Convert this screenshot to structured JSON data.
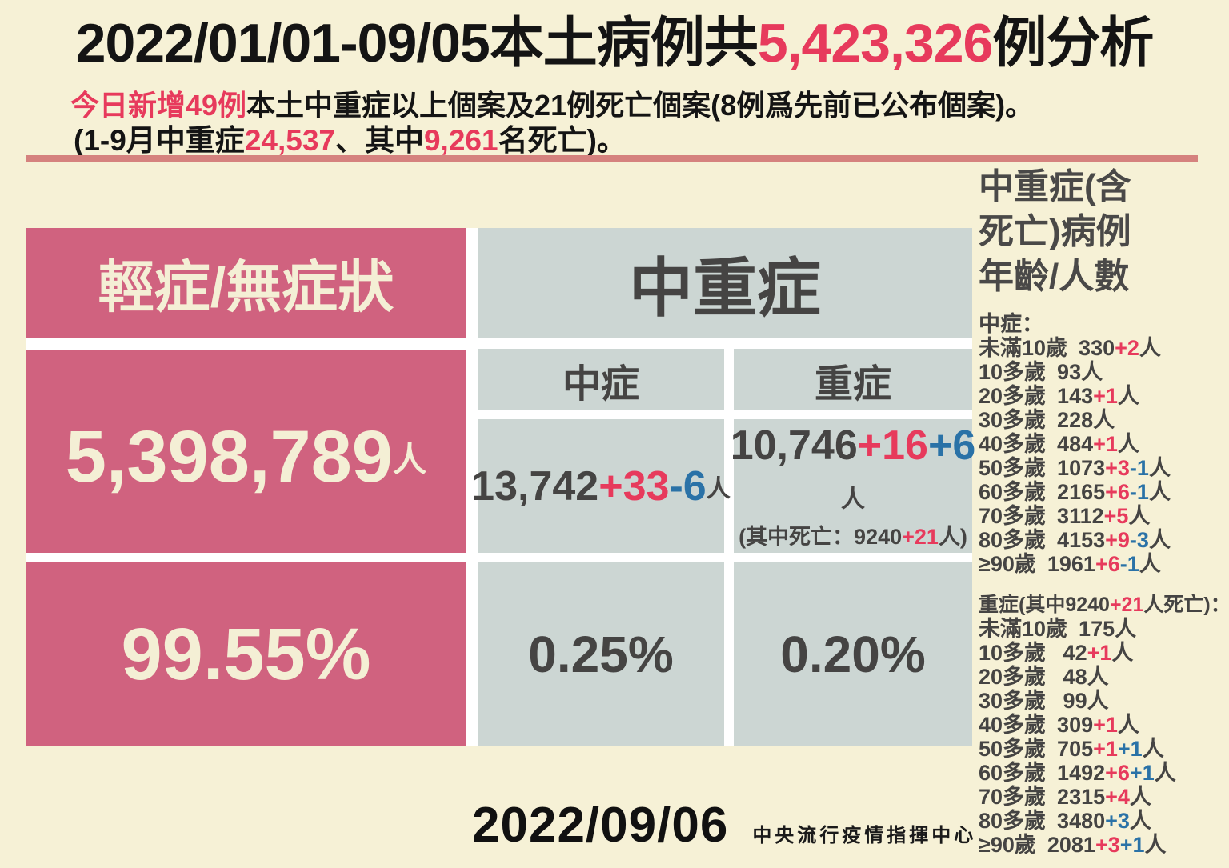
{
  "colors": {
    "background": "#f6f1d6",
    "panel_pink": "#d0627f",
    "panel_gray": "#ccd6d3",
    "divider_salmon": "#d5827e",
    "accent_red": "#e73a5c",
    "accent_blue": "#2a72a7",
    "text_dark": "#454443",
    "text_black": "#141414",
    "text_cream": "#f4efd5"
  },
  "title": {
    "segments": [
      {
        "t": "2022/01/01-09/05本土病例共"
      },
      {
        "t": "5,423,326",
        "c": "r"
      },
      {
        "t": "例分析"
      }
    ]
  },
  "subtitle1": {
    "segments": [
      {
        "t": "今日新增49例",
        "c": "r"
      },
      {
        "t": "本土中重症以上個案及21例死亡個案(8例爲先前已公布個案)。"
      }
    ]
  },
  "subtitle2": {
    "segments": [
      {
        "t": "(1-9月中重症"
      },
      {
        "t": "24,537",
        "c": "r"
      },
      {
        "t": "、其中"
      },
      {
        "t": "9,261",
        "c": "r"
      },
      {
        "t": "名死亡)。"
      }
    ]
  },
  "mild": {
    "header": "輕症/無症狀",
    "count_segments": [
      {
        "t": "5,398,789"
      },
      {
        "t": "人",
        "c": "suffix"
      }
    ],
    "percent": "99.55%"
  },
  "moderate_severe": {
    "header": "中重症",
    "moderate": {
      "label": "中症",
      "count_segments": [
        {
          "t": "13,742"
        },
        {
          "t": "+33",
          "c": "r"
        },
        {
          "t": "-6",
          "c": "b"
        },
        {
          "t": "人",
          "c": "suffix"
        }
      ],
      "percent": "0.25%"
    },
    "severe": {
      "label": "重症",
      "count_segments": [
        {
          "t": "10,746"
        },
        {
          "t": "+16",
          "c": "r"
        },
        {
          "t": "+6",
          "c": "b"
        },
        {
          "t": "人",
          "c": "suffix"
        }
      ],
      "death_note_segments": [
        {
          "t": "(其中死亡：9240"
        },
        {
          "t": "+21",
          "c": "r"
        },
        {
          "t": "人)"
        }
      ],
      "percent": "0.20%"
    }
  },
  "sidebar": {
    "title_lines": [
      "中重症(含",
      "死亡)病例",
      "年齡/人數"
    ],
    "moderate_heading_segments": [
      {
        "t": "中症："
      }
    ],
    "moderate_rows": [
      {
        "label": "未滿10歲",
        "segs": [
          {
            "t": "330"
          },
          {
            "t": "+2",
            "c": "r"
          },
          {
            "t": "人"
          }
        ]
      },
      {
        "label": "10多歲",
        "segs": [
          {
            "t": "93"
          },
          {
            "t": "人"
          }
        ]
      },
      {
        "label": "20多歲",
        "segs": [
          {
            "t": "143"
          },
          {
            "t": "+1",
            "c": "r"
          },
          {
            "t": "人"
          }
        ]
      },
      {
        "label": "30多歲",
        "segs": [
          {
            "t": "228"
          },
          {
            "t": "人"
          }
        ]
      },
      {
        "label": "40多歲",
        "segs": [
          {
            "t": "484"
          },
          {
            "t": "+1",
            "c": "r"
          },
          {
            "t": "人"
          }
        ]
      },
      {
        "label": "50多歲",
        "segs": [
          {
            "t": "1073"
          },
          {
            "t": "+3",
            "c": "r"
          },
          {
            "t": "-1",
            "c": "b"
          },
          {
            "t": "人"
          }
        ]
      },
      {
        "label": "60多歲",
        "segs": [
          {
            "t": "2165"
          },
          {
            "t": "+6",
            "c": "r"
          },
          {
            "t": "-1",
            "c": "b"
          },
          {
            "t": "人"
          }
        ]
      },
      {
        "label": "70多歲",
        "segs": [
          {
            "t": "3112"
          },
          {
            "t": "+5",
            "c": "r"
          },
          {
            "t": "人"
          }
        ]
      },
      {
        "label": "80多歲",
        "segs": [
          {
            "t": "4153"
          },
          {
            "t": "+9",
            "c": "r"
          },
          {
            "t": "-3",
            "c": "b"
          },
          {
            "t": "人"
          }
        ]
      },
      {
        "label": "≥90歲",
        "segs": [
          {
            "t": "1961"
          },
          {
            "t": "+6",
            "c": "r"
          },
          {
            "t": "-1",
            "c": "b"
          },
          {
            "t": "人"
          }
        ]
      }
    ],
    "severe_heading_segments": [
      {
        "t": "重症(其中9240"
      },
      {
        "t": "+21",
        "c": "r"
      },
      {
        "t": "人死亡)："
      }
    ],
    "severe_rows": [
      {
        "label": "未滿10歲",
        "segs": [
          {
            "t": "175"
          },
          {
            "t": "人"
          }
        ]
      },
      {
        "label": "10多歲",
        "segs": [
          {
            "t": " 42"
          },
          {
            "t": "+1",
            "c": "r"
          },
          {
            "t": "人"
          }
        ]
      },
      {
        "label": "20多歲",
        "segs": [
          {
            "t": " 48"
          },
          {
            "t": "人"
          }
        ]
      },
      {
        "label": "30多歲",
        "segs": [
          {
            "t": " 99"
          },
          {
            "t": "人"
          }
        ]
      },
      {
        "label": "40多歲",
        "segs": [
          {
            "t": "309"
          },
          {
            "t": "+1",
            "c": "r"
          },
          {
            "t": "人"
          }
        ]
      },
      {
        "label": "50多歲",
        "segs": [
          {
            "t": "705"
          },
          {
            "t": "+1",
            "c": "r"
          },
          {
            "t": "+1",
            "c": "b"
          },
          {
            "t": "人"
          }
        ]
      },
      {
        "label": "60多歲",
        "segs": [
          {
            "t": "1492"
          },
          {
            "t": "+6",
            "c": "r"
          },
          {
            "t": "+1",
            "c": "b"
          },
          {
            "t": "人"
          }
        ]
      },
      {
        "label": "70多歲",
        "segs": [
          {
            "t": "2315"
          },
          {
            "t": "+4",
            "c": "r"
          },
          {
            "t": "人"
          }
        ]
      },
      {
        "label": "80多歲",
        "segs": [
          {
            "t": "3480"
          },
          {
            "t": "+3",
            "c": "b"
          },
          {
            "t": "人"
          }
        ]
      },
      {
        "label": "≥90歲",
        "segs": [
          {
            "t": "2081"
          },
          {
            "t": "+3",
            "c": "r"
          },
          {
            "t": "+1",
            "c": "b"
          },
          {
            "t": "人"
          }
        ]
      }
    ]
  },
  "footer": {
    "date": "2022/09/06",
    "org": "中央流行疫情指揮中心"
  },
  "chart_data": {
    "type": "table",
    "title": "2022/01/01-09/05本土病例共5,423,326例分析",
    "total_cases": 5423326,
    "as_of_date": "2022/09/06",
    "today": {
      "new_moderate_severe_cases": 49,
      "new_deaths": 21,
      "previously_announced": 8
    },
    "jan_to_sep": {
      "moderate_severe_total": 24537,
      "deaths_total": 9261
    },
    "categories": [
      "輕症/無症狀",
      "中症",
      "重症"
    ],
    "counts": [
      5398789,
      13742,
      10746
    ],
    "count_changes": [
      "",
      "+33-6",
      "+16+6"
    ],
    "percents": [
      99.55,
      0.25,
      0.2
    ],
    "severe_deaths": {
      "count": 9240,
      "new": "+21"
    },
    "age_breakdown_moderate": [
      {
        "age": "未滿10歲",
        "count": 330,
        "delta": "+2"
      },
      {
        "age": "10多歲",
        "count": 93,
        "delta": ""
      },
      {
        "age": "20多歲",
        "count": 143,
        "delta": "+1"
      },
      {
        "age": "30多歲",
        "count": 228,
        "delta": ""
      },
      {
        "age": "40多歲",
        "count": 484,
        "delta": "+1"
      },
      {
        "age": "50多歲",
        "count": 1073,
        "delta": "+3-1"
      },
      {
        "age": "60多歲",
        "count": 2165,
        "delta": "+6-1"
      },
      {
        "age": "70多歲",
        "count": 3112,
        "delta": "+5"
      },
      {
        "age": "80多歲",
        "count": 4153,
        "delta": "+9-3"
      },
      {
        "age": "≥90歲",
        "count": 1961,
        "delta": "+6-1"
      }
    ],
    "age_breakdown_severe": [
      {
        "age": "未滿10歲",
        "count": 175,
        "delta": ""
      },
      {
        "age": "10多歲",
        "count": 42,
        "delta": "+1"
      },
      {
        "age": "20多歲",
        "count": 48,
        "delta": ""
      },
      {
        "age": "30多歲",
        "count": 99,
        "delta": ""
      },
      {
        "age": "40多歲",
        "count": 309,
        "delta": "+1"
      },
      {
        "age": "50多歲",
        "count": 705,
        "delta": "+1+1"
      },
      {
        "age": "60多歲",
        "count": 1492,
        "delta": "+6+1"
      },
      {
        "age": "70多歲",
        "count": 2315,
        "delta": "+4"
      },
      {
        "age": "80多歲",
        "count": 3480,
        "delta": "+3"
      },
      {
        "age": "≥90歲",
        "count": 2081,
        "delta": "+3+1"
      }
    ]
  }
}
